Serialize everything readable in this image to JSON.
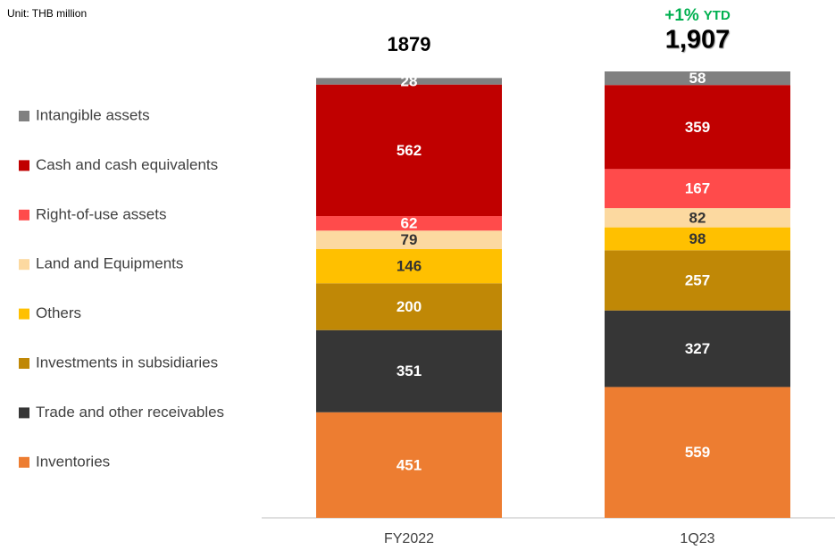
{
  "chart_data": {
    "type": "stacked_bar",
    "subtitle": "Unit: THB million",
    "categories": [
      "FY2022",
      "1Q23"
    ],
    "series": [
      {
        "name": "Inventories",
        "color": "#ed7d31",
        "label_color": "#ffffff",
        "values": [
          451,
          559
        ]
      },
      {
        "name": "Trade and other receivables",
        "color": "#363636",
        "label_color": "#ffffff",
        "values": [
          351,
          327
        ]
      },
      {
        "name": "Investments in subsidiaries",
        "color": "#c08806",
        "label_color": "#ffffff",
        "values": [
          200,
          257
        ]
      },
      {
        "name": "Others",
        "color": "#ffc000",
        "label_color": "#333333",
        "values": [
          146,
          98
        ]
      },
      {
        "name": "Land and Equipments",
        "color": "#fcd9a0",
        "label_color": "#333333",
        "values": [
          79,
          82
        ]
      },
      {
        "name": "Right-of-use assets",
        "color": "#ff4b4b",
        "label_color": "#ffffff",
        "values": [
          62,
          167
        ]
      },
      {
        "name": "Cash and cash equivalents",
        "color": "#c00000",
        "label_color": "#ffffff",
        "values": [
          562,
          359
        ]
      },
      {
        "name": "Intangible assets",
        "color": "#808080",
        "label_color": "#ffffff",
        "values": [
          28,
          58
        ]
      }
    ],
    "totals": [
      1879,
      1907
    ],
    "total_labels": [
      "1879",
      "1,907"
    ],
    "annotation": "+1%",
    "annotation_suffix": "YTD",
    "annotation_color": "#00b050"
  }
}
